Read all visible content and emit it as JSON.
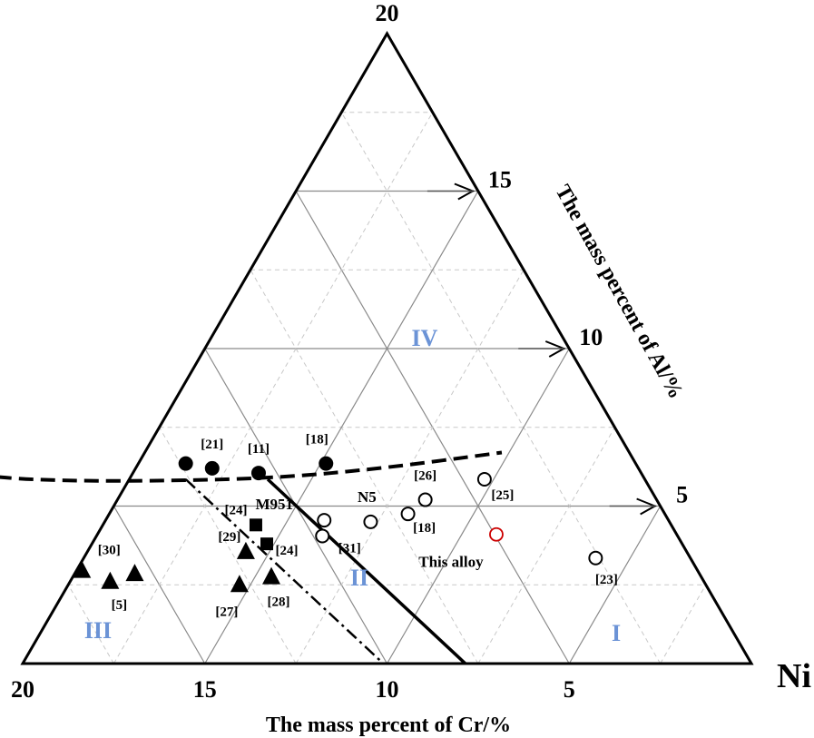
{
  "chart_data": {
    "type": "ternary-scatter",
    "axes": {
      "al": {
        "label": "The mass percent of Al/%",
        "ticks": [
          5,
          10,
          15,
          20
        ]
      },
      "cr": {
        "label": "The mass percent of Cr/%",
        "ticks": [
          20,
          15,
          10,
          5
        ]
      },
      "ni": {
        "label": "Ni"
      },
      "range": [
        0,
        20
      ]
    },
    "regions": [
      "I",
      "II",
      "III",
      "IV"
    ],
    "series": [
      {
        "marker": "filled-circle",
        "points": [
          {
            "cr": 12.35,
            "al": 6.35,
            "label": ""
          },
          {
            "cr": 11.7,
            "al": 6.2,
            "label": "[21]"
          },
          {
            "cr": 10.5,
            "al": 6.05,
            "label": "[11]"
          },
          {
            "cr": 8.5,
            "al": 6.35,
            "label": "[18]"
          }
        ]
      },
      {
        "marker": "open-circle",
        "points": [
          {
            "cr": 9.45,
            "al": 4.55,
            "label": "M951"
          },
          {
            "cr": 9.75,
            "al": 4.05,
            "label": "[31]"
          },
          {
            "cr": 8.2,
            "al": 4.5,
            "label": "N5"
          },
          {
            "cr": 7.05,
            "al": 4.75,
            "label": "[18]"
          },
          {
            "cr": 6.35,
            "al": 5.2,
            "label": "[26]"
          },
          {
            "cr": 4.4,
            "al": 5.85,
            "label": "[25]"
          },
          {
            "cr": 2.6,
            "al": 3.35,
            "label": "[23]"
          }
        ]
      },
      {
        "marker": "filled-square",
        "points": [
          {
            "cr": 11.4,
            "al": 4.4,
            "label": "[24]"
          },
          {
            "cr": 11.4,
            "al": 3.8,
            "label": "[24]"
          }
        ]
      },
      {
        "marker": "filled-triangle",
        "points": [
          {
            "cr": 16.9,
            "al": 2.95,
            "label": "[30]"
          },
          {
            "cr": 16.3,
            "al": 2.6,
            "label": "[5]"
          },
          {
            "cr": 15.5,
            "al": 2.85,
            "label": ""
          },
          {
            "cr": 12.8,
            "al": 2.5,
            "label": "[27]"
          },
          {
            "cr": 12.1,
            "al": 3.55,
            "label": "[29]"
          },
          {
            "cr": 11.8,
            "al": 2.75,
            "label": "[28]"
          }
        ]
      },
      {
        "marker": "open-circle-red",
        "color": "#cc0000",
        "points": [
          {
            "cr": 4.95,
            "al": 4.1,
            "label": "This alloy"
          }
        ]
      }
    ],
    "boundaries": [
      {
        "style": "dashed",
        "points": [
          [
            20,
            7.0
          ],
          [
            19.4,
            6.3
          ],
          [
            18.2,
            5.95
          ],
          [
            16.2,
            5.8
          ],
          [
            13.0,
            5.8
          ],
          [
            10.0,
            5.9
          ],
          [
            7.0,
            6.2
          ],
          [
            3.5,
            6.7
          ]
        ]
      },
      {
        "style": "solid",
        "points": [
          [
            10.35,
            5.85
          ],
          [
            7.85,
            0
          ]
        ]
      },
      {
        "style": "dash-dot",
        "points": [
          [
            12.6,
            5.85
          ],
          [
            10.1,
            0
          ]
        ]
      }
    ],
    "grid": true,
    "legend": "none"
  }
}
